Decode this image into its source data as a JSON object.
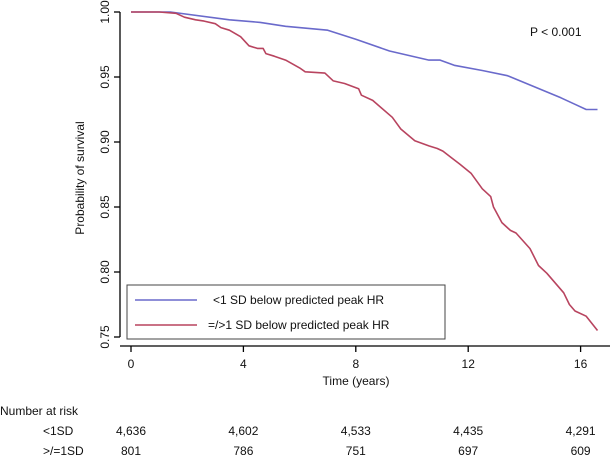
{
  "chart_data": {
    "type": "line",
    "title": "",
    "xlabel": "Time (years)",
    "ylabel": "Probability of survival",
    "xlim": [
      -0.4,
      16.7
    ],
    "ylim": [
      0.745,
      1.0
    ],
    "x_ticks": [
      0,
      4,
      8,
      12,
      16
    ],
    "x_tick_labels": [
      "0",
      "4",
      "8",
      "12",
      "16"
    ],
    "y_ticks": [
      0.75,
      0.8,
      0.85,
      0.9,
      0.95,
      1.0
    ],
    "y_tick_labels": [
      "0.75",
      "0.80",
      "0.85",
      "0.90",
      "0.95",
      "1.00"
    ],
    "grid": false,
    "annotation": "P < 0.001",
    "legend_position": "bottom-left",
    "series": [
      {
        "name": "<1 SD below predicted peak HR",
        "color": "#6a6acb",
        "x": [
          0,
          1.4,
          3.5,
          4.6,
          5.5,
          7.0,
          8.0,
          9.2,
          10.6,
          11.0,
          11.5,
          12.5,
          13.4,
          14.3,
          15.3,
          15.8,
          16.2,
          16.6
        ],
        "y": [
          1.0,
          1.0,
          0.994,
          0.992,
          0.989,
          0.986,
          0.979,
          0.97,
          0.963,
          0.963,
          0.959,
          0.955,
          0.951,
          0.943,
          0.934,
          0.929,
          0.925,
          0.925
        ]
      },
      {
        "name": "=/>1 SD below predicted peak HR",
        "color": "#b8445f",
        "x": [
          0,
          1.0,
          1.6,
          1.9,
          2.3,
          2.6,
          3.0,
          3.2,
          3.5,
          3.9,
          4.2,
          4.5,
          4.7,
          4.8,
          5.1,
          5.5,
          6.0,
          6.2,
          6.9,
          7.2,
          7.6,
          8.1,
          8.2,
          8.6,
          9.3,
          9.6,
          10.1,
          10.6,
          10.9,
          11.1,
          11.4,
          11.7,
          12.1,
          12.5,
          12.8,
          12.9,
          13.2,
          13.5,
          13.7,
          14.2,
          14.5,
          14.8,
          15.2,
          15.4,
          15.6,
          15.8,
          16.2,
          16.6
        ],
        "y": [
          1.0,
          1.0,
          0.999,
          0.996,
          0.994,
          0.993,
          0.991,
          0.988,
          0.986,
          0.981,
          0.974,
          0.972,
          0.972,
          0.968,
          0.966,
          0.963,
          0.957,
          0.954,
          0.953,
          0.947,
          0.945,
          0.941,
          0.936,
          0.932,
          0.919,
          0.91,
          0.901,
          0.897,
          0.895,
          0.893,
          0.888,
          0.883,
          0.876,
          0.864,
          0.858,
          0.85,
          0.838,
          0.832,
          0.83,
          0.818,
          0.805,
          0.799,
          0.789,
          0.784,
          0.775,
          0.77,
          0.766,
          0.755
        ]
      }
    ],
    "risk_table": {
      "title": "Number at risk",
      "times": [
        0,
        4,
        8,
        12,
        16
      ],
      "rows": [
        {
          "label": "<1SD",
          "values": [
            "4,636",
            "4,602",
            "4,533",
            "4,435",
            "4,291"
          ]
        },
        {
          "label": ">/=1SD",
          "values": [
            "801",
            "786",
            "751",
            "697",
            "609"
          ]
        }
      ]
    }
  }
}
